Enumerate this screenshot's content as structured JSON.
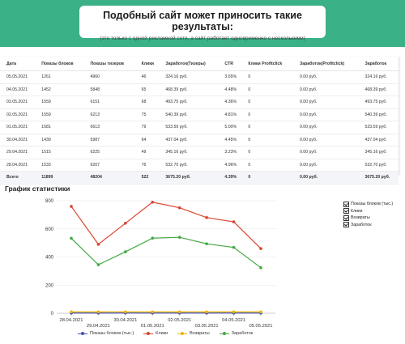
{
  "hero": {
    "title": "Подобный сайт может приносить такие результаты:",
    "subtitle": "(это только с одной рекламной сети, а сайт работает одновременно с несколькими)"
  },
  "table": {
    "headers": [
      "Дата",
      "Показы блоков",
      "Показы тизеров",
      "Клики",
      "Заработок(Тизеры)",
      "CTR",
      "Клики Profitclick",
      "Заработок(Profitclick)",
      "Заработок"
    ],
    "rows": [
      [
        "05.05.2021",
        "1261",
        "4960",
        "46",
        "324.16 руб.",
        "3.65%",
        "0",
        "0.00 руб.",
        "324.16 руб."
      ],
      [
        "04.05.2021",
        "1452",
        "5848",
        "65",
        "468.39 руб.",
        "4.48%",
        "0",
        "0.00 руб.",
        "468.39 руб."
      ],
      [
        "03.05.2021",
        "1559",
        "6151",
        "68",
        "493.75 руб.",
        "4.36%",
        "0",
        "0.00 руб.",
        "493.75 руб."
      ],
      [
        "02.05.2021",
        "1559",
        "6213",
        "75",
        "540.39 руб.",
        "4.81%",
        "0",
        "0.00 руб.",
        "540.39 руб."
      ],
      [
        "01.05.2021",
        "1581",
        "6613",
        "79",
        "533.59 руб.",
        "5.00%",
        "0",
        "0.00 руб.",
        "533.59 руб."
      ],
      [
        "30.04.2021",
        "1439",
        "5987",
        "64",
        "437.04 руб.",
        "4.45%",
        "0",
        "0.00 руб.",
        "437.04 руб."
      ],
      [
        "29.04.2021",
        "1515",
        "6225",
        "49",
        "345.16 руб.",
        "3.23%",
        "0",
        "0.00 руб.",
        "345.16 руб."
      ],
      [
        "28.04.2021",
        "1533",
        "6207",
        "76",
        "532.70 руб.",
        "4.96%",
        "0",
        "0.00 руб.",
        "532.70 руб."
      ]
    ],
    "total": [
      "Всего",
      "11899",
      "48204",
      "522",
      "3675.20 руб.",
      "4.39%",
      "0",
      "0.00 руб.",
      "3675.20 руб."
    ]
  },
  "chart_title": "График статистики",
  "toggles": [
    {
      "label": "Показы блоков (тыс.)",
      "checked": true
    },
    {
      "label": "Клики",
      "checked": true
    },
    {
      "label": "Возвраты",
      "checked": true
    },
    {
      "label": "Заработок",
      "checked": true
    }
  ],
  "chart_data": {
    "type": "line",
    "x": [
      "28.04.2021",
      "29.04.2021",
      "30.04.2021",
      "01.05.2021",
      "02.05.2021",
      "03.05.2021",
      "04.05.2021",
      "05.05.2021"
    ],
    "ylim": [
      0,
      800
    ],
    "yticks": [
      0,
      200,
      400,
      600,
      800
    ],
    "grid": true,
    "legend": "bottom",
    "series": [
      {
        "name": "Показы блоков (тыс.)",
        "color": "#3f51b5",
        "values": [
          1.533,
          1.515,
          1.439,
          1.581,
          1.559,
          1.559,
          1.452,
          1.261
        ]
      },
      {
        "name": "Клики",
        "color": "#d9452f",
        "values": [
          760,
          490,
          640,
          790,
          750,
          680,
          650,
          460
        ]
      },
      {
        "name": "Возвраты",
        "color": "#f0b400",
        "values": [
          10,
          10,
          10,
          10,
          10,
          10,
          10,
          10
        ]
      },
      {
        "name": "Заработок",
        "color": "#43a843",
        "values": [
          533,
          345,
          437,
          534,
          540,
          494,
          468,
          324
        ]
      }
    ]
  }
}
